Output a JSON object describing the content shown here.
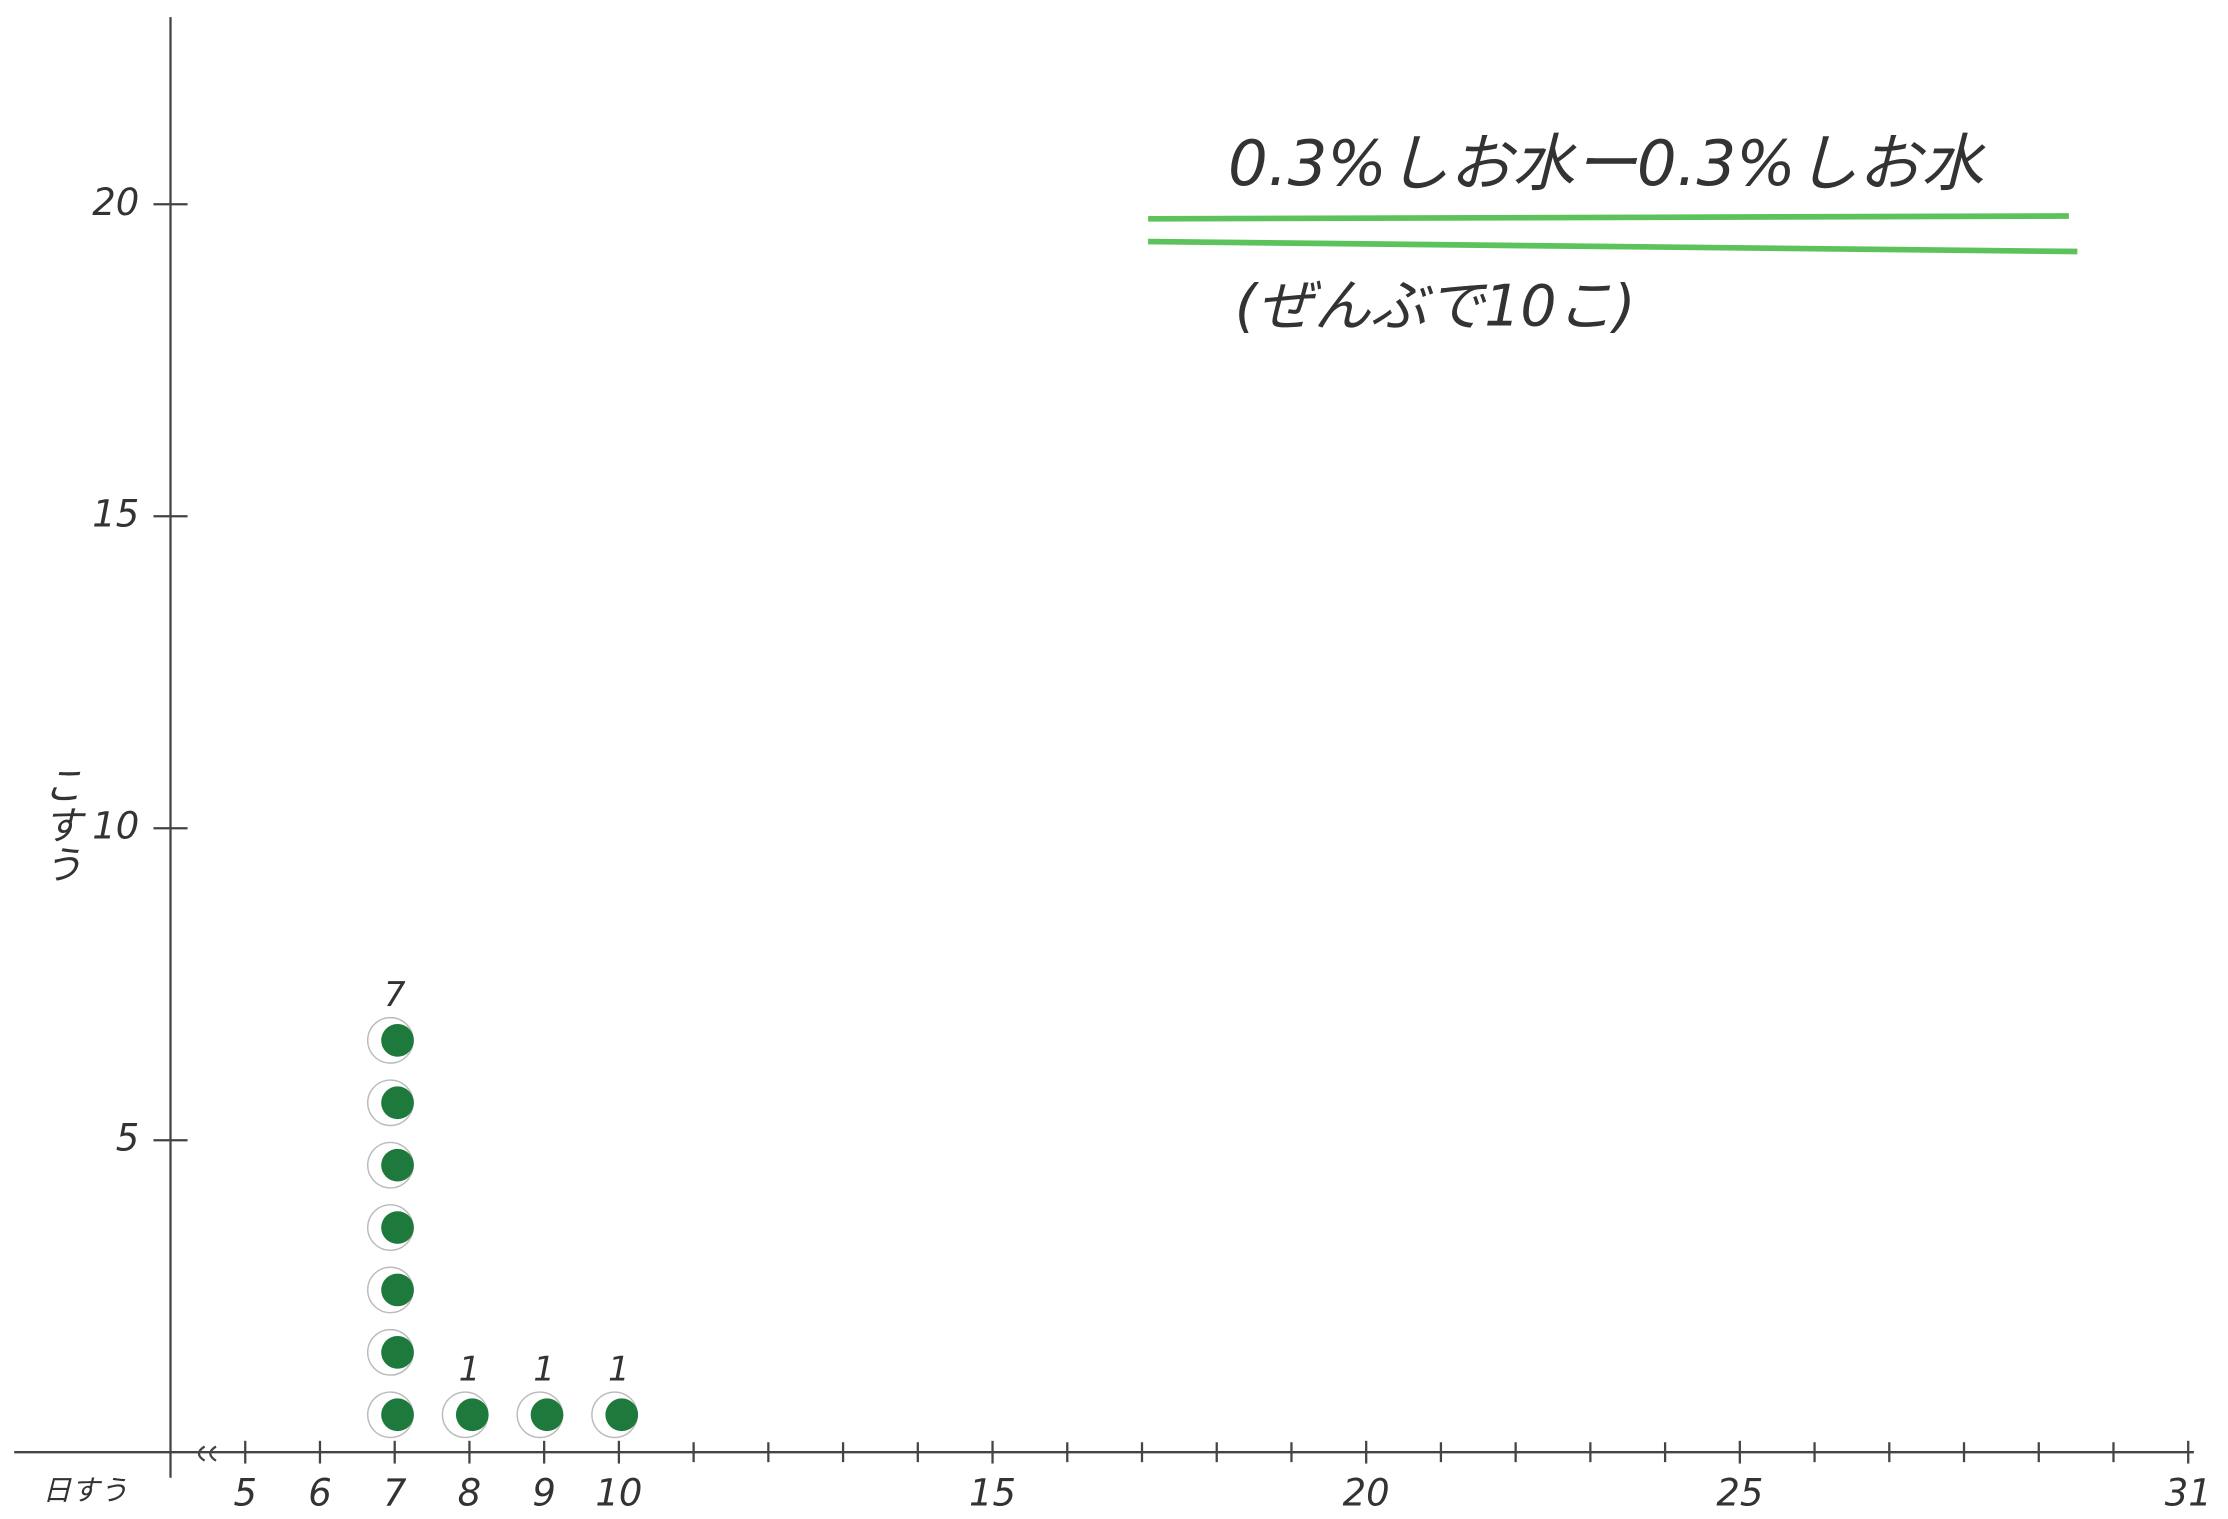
{
  "chart_data": {
    "type": "dot",
    "title": "0.3%しお水ー0.3%しお水",
    "subtitle": "(ぜんぶで10こ)",
    "x_label": "日すう",
    "y_label": "こすう",
    "x": [
      7,
      8,
      9,
      10
    ],
    "values": [
      7,
      1,
      1,
      1
    ],
    "color": "#1e7a3c",
    "title_underline_color": "#5cc25c",
    "xlim": [
      4,
      31
    ],
    "xticks": [
      5,
      6,
      7,
      8,
      9,
      10,
      15,
      20,
      25,
      31
    ],
    "xminorticks": [
      11,
      12,
      13,
      14,
      16,
      17,
      18,
      19,
      21,
      22,
      23,
      24,
      26,
      27,
      28,
      29,
      30
    ],
    "ylim": [
      0,
      23
    ],
    "yticks": [
      5,
      10,
      15,
      20
    ]
  }
}
